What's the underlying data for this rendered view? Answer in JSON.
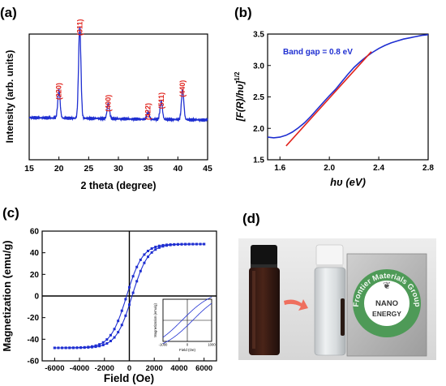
{
  "panel_labels": [
    "(a)",
    "(b)",
    "(c)",
    "(d)"
  ],
  "photo": {
    "logo_ring_text": "Frontier Materials Group",
    "logo_lines": [
      "NANO",
      "ENERGY"
    ]
  },
  "chart_data": [
    {
      "panel": "(a)",
      "type": "line",
      "xlabel": "2 theta (degree)",
      "ylabel": "Intensity (arb. units)",
      "xlim": [
        15,
        45
      ],
      "xticks": [
        "15",
        "20",
        "25",
        "30",
        "35",
        "40",
        "45"
      ],
      "line_color": "#1f2fd1",
      "annotation_color": "#e0231c",
      "peaks": [
        {
          "label": "(220)",
          "x": 20.0,
          "rel_intensity": 0.3
        },
        {
          "label": "(311)",
          "x": 23.5,
          "rel_intensity": 1.0
        },
        {
          "label": "(400)",
          "x": 28.3,
          "rel_intensity": 0.17
        },
        {
          "label": "(422)",
          "x": 35.0,
          "rel_intensity": 0.08
        },
        {
          "label": "(511)",
          "x": 37.2,
          "rel_intensity": 0.2
        },
        {
          "label": "(440)",
          "x": 40.8,
          "rel_intensity": 0.33
        }
      ],
      "grid": false
    },
    {
      "panel": "(b)",
      "type": "line",
      "xlabel": "hυ (eV)",
      "ylabel": "[F(R)/hυ]",
      "ylabel_superscript": "1/2",
      "xlim": [
        1.5,
        2.8
      ],
      "ylim": [
        1.5,
        3.5
      ],
      "xticks": [
        "1.6",
        "2.0",
        "2.4",
        "2.8"
      ],
      "yticks": [
        "1.5",
        "2.0",
        "2.5",
        "3.0",
        "3.5"
      ],
      "annotation": "Band gap = 0.8 eV",
      "series": [
        {
          "color": "#1f2fd1",
          "x": [
            1.5,
            1.55,
            1.6,
            1.65,
            1.7,
            1.75,
            1.8,
            1.85,
            1.9,
            1.95,
            2.0,
            2.05,
            2.1,
            2.15,
            2.2,
            2.25,
            2.3,
            2.35,
            2.4,
            2.45,
            2.5,
            2.55,
            2.6,
            2.65,
            2.7,
            2.75,
            2.8
          ],
          "y": [
            1.86,
            1.85,
            1.86,
            1.89,
            1.94,
            2.01,
            2.09,
            2.19,
            2.3,
            2.41,
            2.52,
            2.62,
            2.74,
            2.86,
            2.97,
            3.06,
            3.14,
            3.21,
            3.27,
            3.32,
            3.36,
            3.39,
            3.42,
            3.44,
            3.46,
            3.48,
            3.49
          ]
        },
        {
          "color": "#e0231c",
          "x": [
            1.65,
            2.34
          ],
          "y": [
            1.72,
            3.22
          ]
        }
      ],
      "grid": false
    },
    {
      "panel": "(c)",
      "type": "scatter",
      "xlabel": "Field (Oe)",
      "ylabel": "Magnetization (emu/g)",
      "xlim": [
        -7000,
        7000
      ],
      "ylim": [
        -60,
        60
      ],
      "xticks": [
        "-6000",
        "-4000",
        "-2000",
        "0",
        "2000",
        "4000",
        "6000"
      ],
      "yticks": [
        "-60",
        "-40",
        "-20",
        "0",
        "20",
        "40",
        "60"
      ],
      "line_color": "#1f2fd1",
      "saturation": 48,
      "field_range": [
        -6000,
        6000
      ],
      "inset": {
        "xlabel": "Field (Oe)",
        "ylabel": "Magnetization (emu/g)",
        "xticks": [
          "-1000",
          "0",
          "1000"
        ],
        "xlim": [
          -1000,
          1000
        ]
      },
      "grid": false
    }
  ]
}
